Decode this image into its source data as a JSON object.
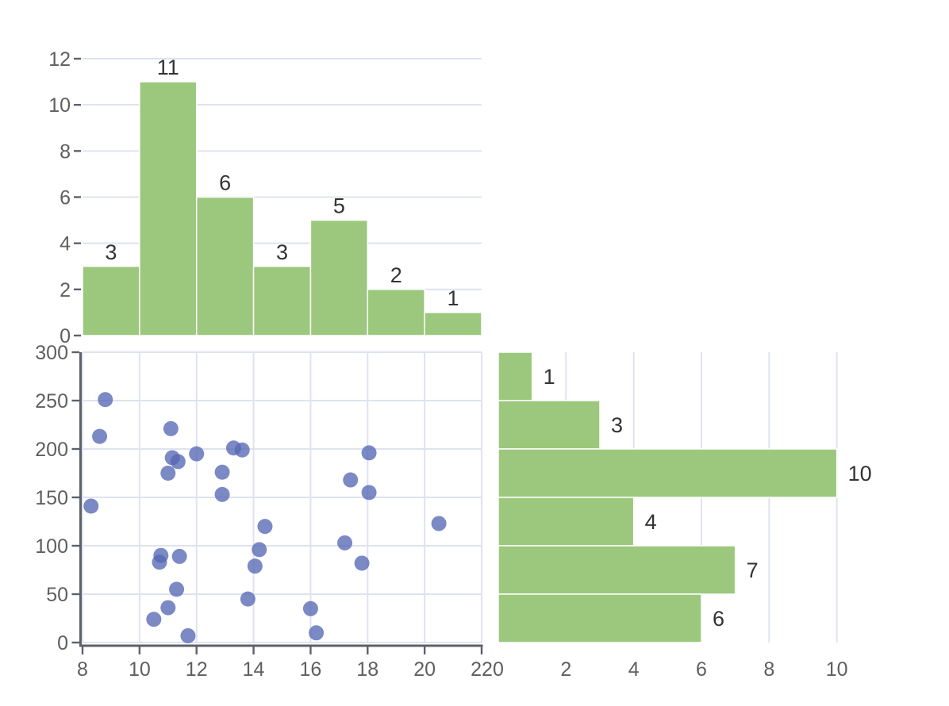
{
  "figure": {
    "description": "Joint distribution figure: scatter plot with marginal histograms on top and right",
    "background": "#FFFFFF"
  },
  "colors": {
    "bar_fill": "#9BC87D",
    "bar_edge": "#FFFFFF",
    "dot_fill": "#5668B4",
    "dot_opacity": 0.78,
    "grid": "#DFE3EF",
    "axis": "#5C616A",
    "tick_label": "#5F5F5F",
    "count_label": "#333333"
  },
  "chart_data": [
    {
      "id": "top_histogram",
      "type": "bar",
      "orientation": "vertical",
      "title": "",
      "xlabel": "",
      "ylabel": "",
      "bin_edges": [
        8,
        10,
        12,
        14,
        16,
        18,
        20,
        22
      ],
      "values": [
        3,
        11,
        6,
        3,
        5,
        2,
        1
      ],
      "bar_labels": [
        "3",
        "11",
        "6",
        "3",
        "5",
        "2",
        "1"
      ],
      "xlim": [
        8,
        22
      ],
      "ylim": [
        0,
        12
      ],
      "yticks": [
        0,
        2,
        4,
        6,
        8,
        10,
        12
      ],
      "ytick_labels": [
        "0",
        "2",
        "4",
        "6",
        "8",
        "10",
        "12"
      ],
      "grid": "horizontal",
      "legend": "none"
    },
    {
      "id": "scatter",
      "type": "scatter",
      "title": "",
      "xlabel": "",
      "ylabel": "",
      "points": [
        [
          8.3,
          141
        ],
        [
          8.6,
          213
        ],
        [
          8.8,
          251
        ],
        [
          10.5,
          24
        ],
        [
          10.7,
          83
        ],
        [
          10.75,
          90
        ],
        [
          11.0,
          175
        ],
        [
          11.0,
          36
        ],
        [
          11.1,
          221
        ],
        [
          11.15,
          191
        ],
        [
          11.3,
          55
        ],
        [
          11.35,
          187
        ],
        [
          11.4,
          89
        ],
        [
          11.7,
          7
        ],
        [
          12.0,
          195
        ],
        [
          12.9,
          153
        ],
        [
          12.9,
          176
        ],
        [
          13.3,
          201
        ],
        [
          13.6,
          199
        ],
        [
          13.8,
          45
        ],
        [
          14.05,
          79
        ],
        [
          14.2,
          96
        ],
        [
          14.4,
          120
        ],
        [
          16.0,
          35
        ],
        [
          16.2,
          10
        ],
        [
          17.2,
          103
        ],
        [
          17.4,
          168
        ],
        [
          17.8,
          82
        ],
        [
          18.05,
          196
        ],
        [
          18.05,
          155
        ],
        [
          20.5,
          123
        ]
      ],
      "xlim": [
        8,
        22
      ],
      "ylim": [
        0,
        300
      ],
      "xticks": [
        8,
        10,
        12,
        14,
        16,
        18,
        20,
        22
      ],
      "xtick_labels": [
        "8",
        "10",
        "12",
        "14",
        "16",
        "18",
        "20",
        "22"
      ],
      "yticks": [
        0,
        50,
        100,
        150,
        200,
        250,
        300
      ],
      "ytick_labels": [
        "0",
        "50",
        "100",
        "150",
        "200",
        "250",
        "300"
      ],
      "grid": "both",
      "legend": "none"
    },
    {
      "id": "right_histogram",
      "type": "bar",
      "orientation": "horizontal",
      "title": "",
      "xlabel": "",
      "ylabel": "",
      "bin_edges": [
        300,
        250,
        200,
        150,
        100,
        50,
        0
      ],
      "values": [
        1,
        3,
        10,
        4,
        7,
        6
      ],
      "bar_labels": [
        "1",
        "3",
        "10",
        "4",
        "7",
        "6"
      ],
      "xlim": [
        0,
        12
      ],
      "ylim": [
        0,
        300
      ],
      "xticks": [
        0,
        2,
        4,
        6,
        8,
        10
      ],
      "xtick_labels": [
        "0",
        "2",
        "4",
        "6",
        "8",
        "10"
      ],
      "grid": "vertical",
      "legend": "none"
    }
  ]
}
